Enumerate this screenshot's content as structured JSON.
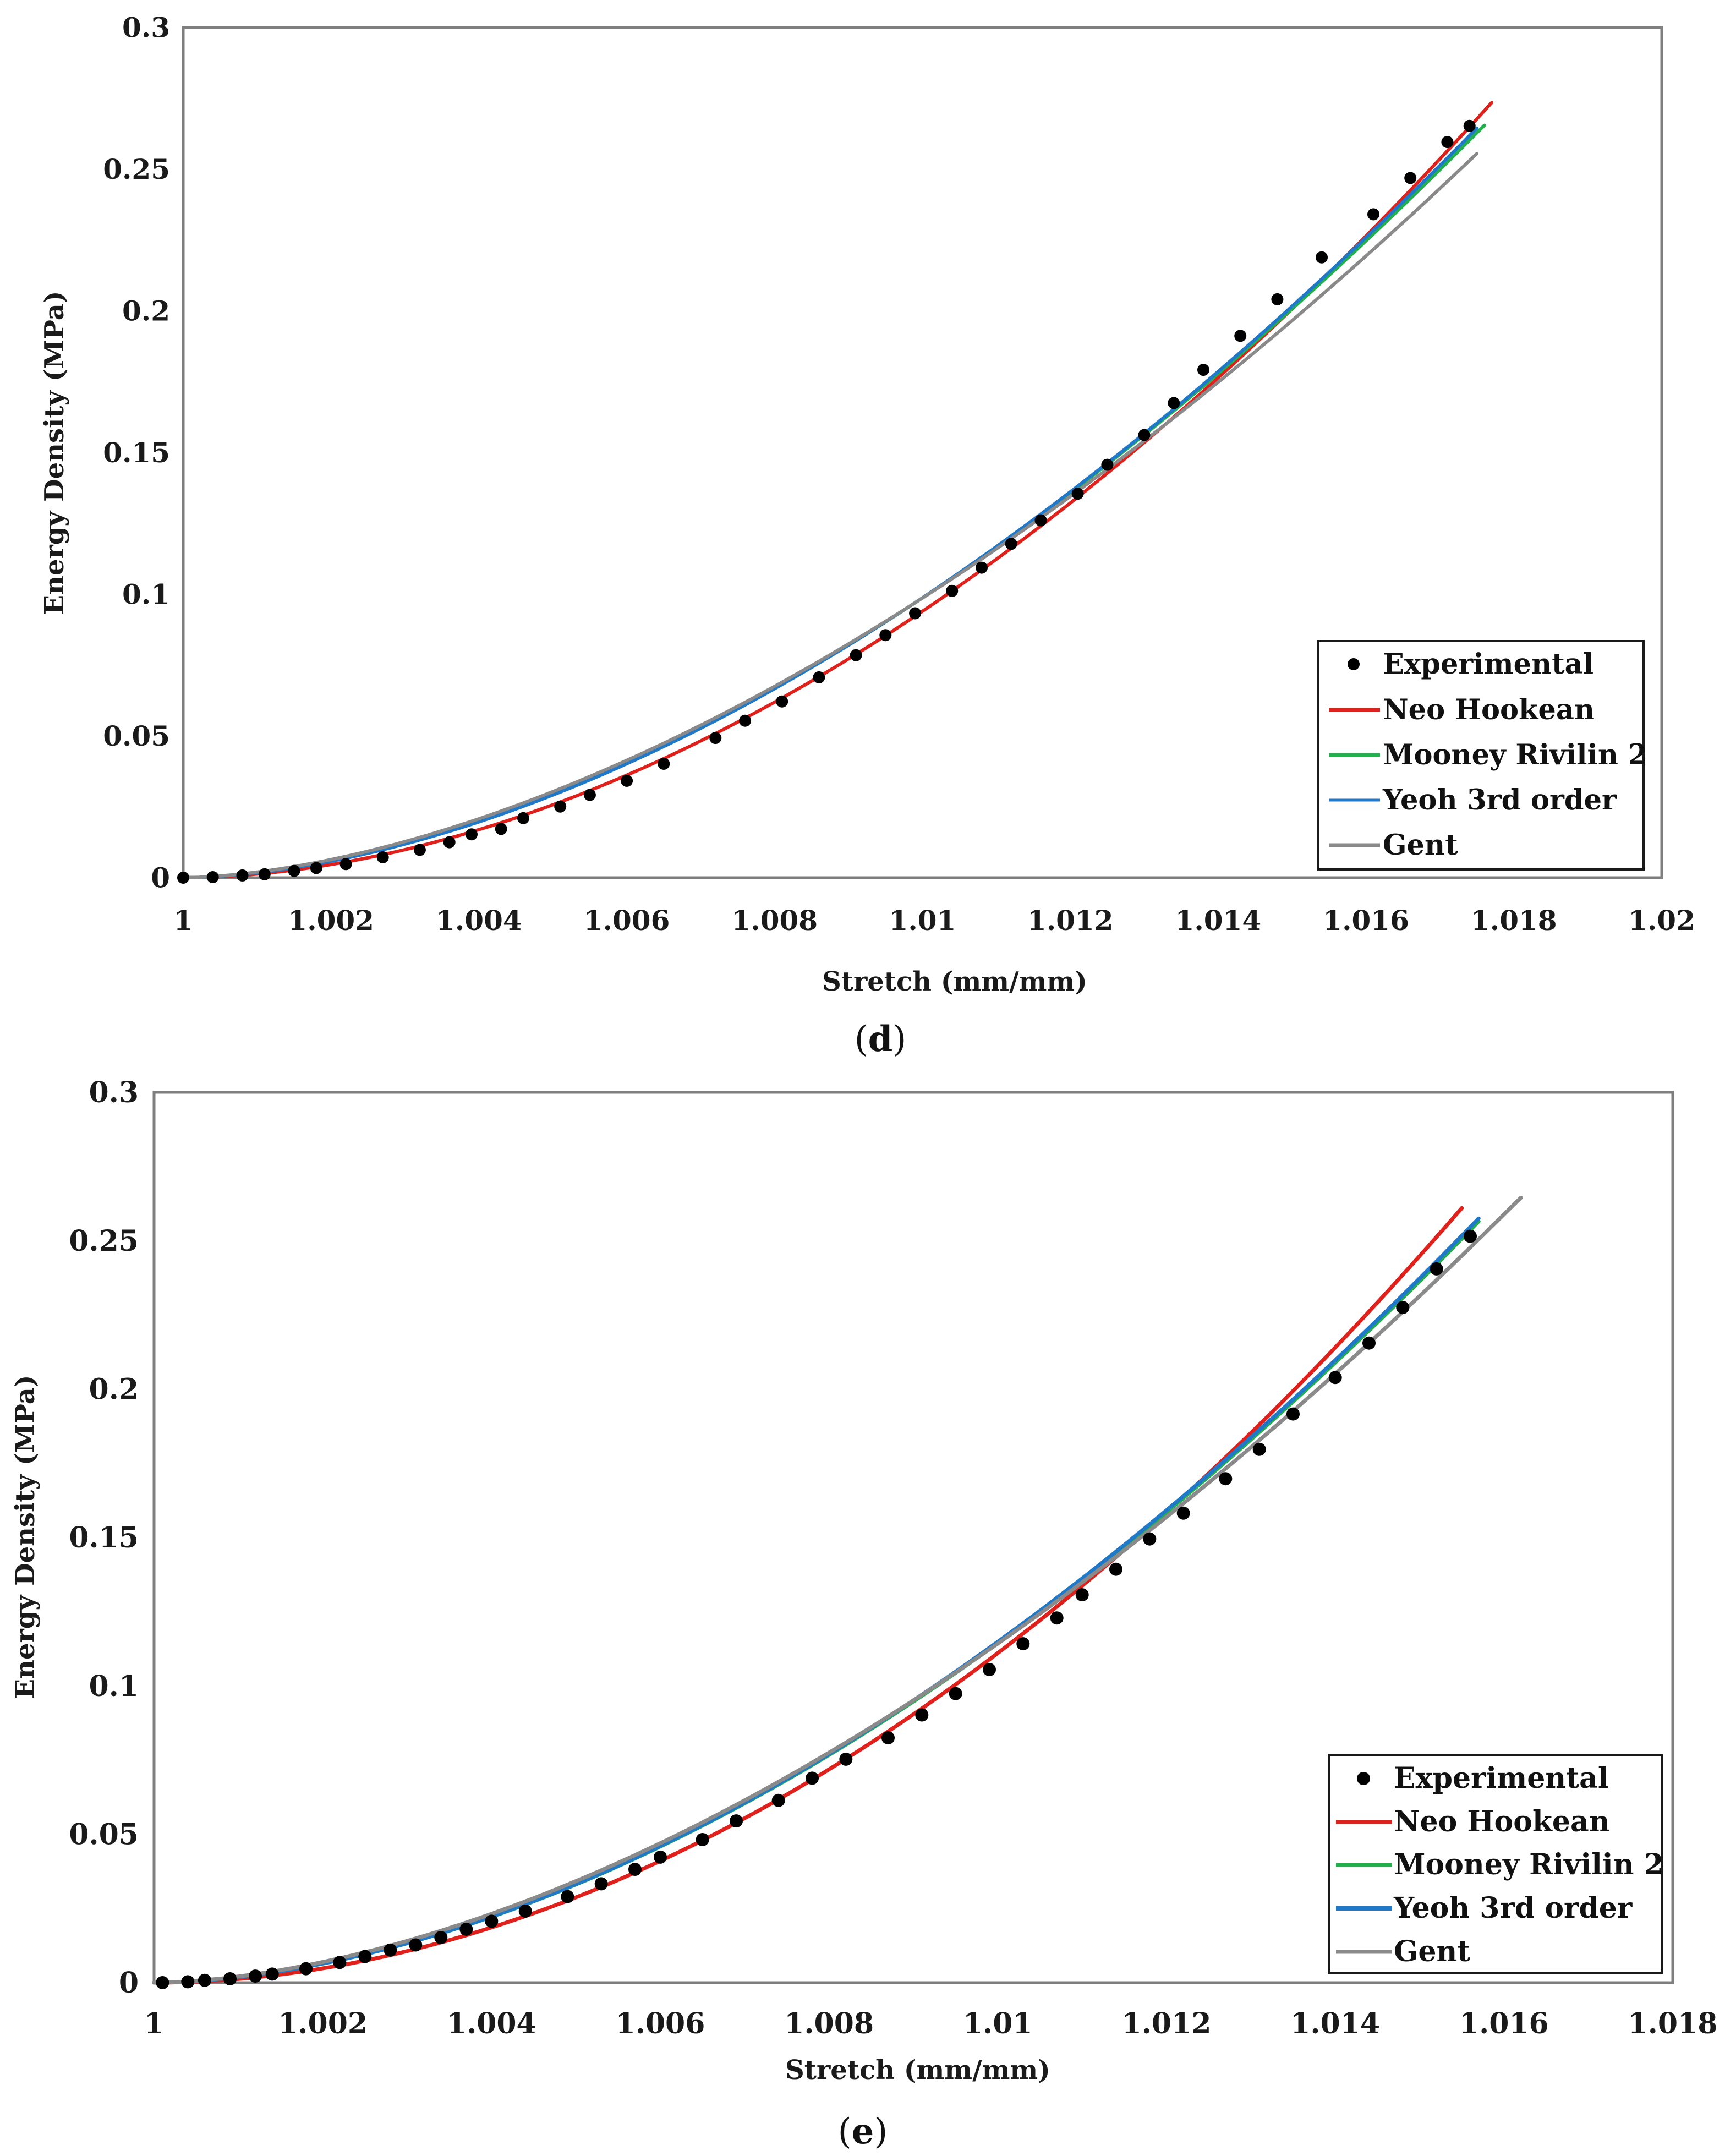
{
  "panels": [
    {
      "caption_open": "(",
      "caption_letter": "d",
      "caption_close": ")",
      "chart_data": {
        "type": "scatter+line",
        "title": "",
        "xlabel": "Stretch (mm/mm)",
        "ylabel": "Energy Density (MPa)",
        "xlim": [
          1,
          1.02
        ],
        "ylim": [
          0,
          0.3
        ],
        "xticks": [
          1,
          1.002,
          1.004,
          1.006,
          1.008,
          1.01,
          1.012,
          1.014,
          1.016,
          1.018,
          1.02
        ],
        "xtick_labels": [
          "1",
          "1.002",
          "1.004",
          "1.006",
          "1.008",
          "1.01",
          "1.012",
          "1.014",
          "1.016",
          "1.018",
          "1.02"
        ],
        "yticks": [
          0,
          0.05,
          0.1,
          0.15,
          0.2,
          0.25,
          0.3
        ],
        "ytick_labels": [
          "0",
          "0.05",
          "0.1",
          "0.15",
          "0.2",
          "0.25",
          "0.3"
        ],
        "grid": false,
        "legend_position": "bottom-right",
        "experimental": {
          "name": "Experimental",
          "x": [
            1.0,
            1.0004,
            1.0008,
            1.0011,
            1.0015,
            1.0018,
            1.0022,
            1.0027,
            1.0032,
            1.0036,
            1.0039,
            1.0043,
            1.0046,
            1.0051,
            1.0055,
            1.006,
            1.0065,
            1.0072,
            1.0076,
            1.0081,
            1.0086,
            1.0091,
            1.0095,
            1.0099,
            1.0104,
            1.0108,
            1.0112,
            1.0116,
            1.0121,
            1.0125,
            1.013,
            1.0134,
            1.0138,
            1.0143,
            1.0148,
            1.0154,
            1.0161,
            1.0166,
            1.0171,
            1.0174
          ],
          "y": [
            0.0,
            0.0002,
            0.0008,
            0.0012,
            0.0024,
            0.0034,
            0.0048,
            0.0072,
            0.0098,
            0.0125,
            0.0153,
            0.0172,
            0.021,
            0.0251,
            0.0292,
            0.0342,
            0.0402,
            0.0493,
            0.0554,
            0.0622,
            0.0707,
            0.0785,
            0.0856,
            0.0933,
            0.1012,
            0.1094,
            0.1178,
            0.1261,
            0.1355,
            0.1457,
            0.1562,
            0.1675,
            0.1792,
            0.1912,
            0.2041,
            0.2189,
            0.2341,
            0.2469,
            0.2596,
            0.2653
          ]
        },
        "series": [
          {
            "name": "Neo Hookean",
            "color": "#e0201b",
            "x_start": 1.0,
            "x_end": 1.0177,
            "y_end": 0.2735,
            "exp": 1.87
          },
          {
            "name": "Mooney Rivilin 2",
            "color": "#21b04b",
            "x_start": 1.0,
            "x_end": 1.0176,
            "y_end": 0.2655,
            "exp": 1.75
          },
          {
            "name": "Yeoh 3rd order",
            "color": "#1f78c8",
            "x_start": 1.0,
            "x_end": 1.0175,
            "y_end": 0.2645,
            "exp": 1.76
          },
          {
            "name": "Gent",
            "color": "#8a8a8a",
            "x_start": 1.0,
            "x_end": 1.0175,
            "y_end": 0.2555,
            "exp": 1.7
          }
        ]
      }
    },
    {
      "caption_open": "(",
      "caption_letter": "e",
      "caption_close": ")",
      "chart_data": {
        "type": "scatter+line",
        "title": "",
        "xlabel": "Stretch (mm/mm)",
        "ylabel": "Energy Density (MPa)",
        "xlim": [
          1,
          1.018
        ],
        "ylim": [
          0,
          0.3
        ],
        "xticks": [
          1,
          1.002,
          1.004,
          1.006,
          1.008,
          1.01,
          1.012,
          1.014,
          1.016,
          1.018
        ],
        "xtick_labels": [
          "1",
          "1.002",
          "1.004",
          "1.006",
          "1.008",
          "1.01",
          "1.012",
          "1.014",
          "1.016",
          "1.018"
        ],
        "yticks": [
          0,
          0.05,
          0.1,
          0.15,
          0.2,
          0.25,
          0.3
        ],
        "ytick_labels": [
          "0",
          "0.05",
          "0.1",
          "0.15",
          "0.2",
          "0.25",
          "0.3"
        ],
        "grid": false,
        "legend_position": "bottom-right",
        "experimental": {
          "name": "Experimental",
          "x": [
            1.0001,
            1.0004,
            1.0006,
            1.0009,
            1.0012,
            1.0014,
            1.0018,
            1.0022,
            1.0025,
            1.0028,
            1.0031,
            1.0034,
            1.0037,
            1.004,
            1.0044,
            1.0049,
            1.0053,
            1.0057,
            1.006,
            1.0065,
            1.0069,
            1.0074,
            1.0078,
            1.0082,
            1.0087,
            1.0091,
            1.0095,
            1.0099,
            1.0103,
            1.0107,
            1.011,
            1.0114,
            1.0118,
            1.0122,
            1.0127,
            1.0131,
            1.0135,
            1.014,
            1.0144,
            1.0148,
            1.0152,
            1.0156
          ],
          "y": [
            0.0,
            0.0003,
            0.0008,
            0.0013,
            0.0022,
            0.0029,
            0.0047,
            0.0068,
            0.0088,
            0.011,
            0.0127,
            0.0152,
            0.018,
            0.0207,
            0.0241,
            0.029,
            0.0333,
            0.0382,
            0.0423,
            0.0482,
            0.0545,
            0.0614,
            0.0689,
            0.0753,
            0.0825,
            0.0902,
            0.0974,
            0.1055,
            0.1142,
            0.1229,
            0.1307,
            0.1393,
            0.1495,
            0.1582,
            0.1698,
            0.1797,
            0.1916,
            0.2039,
            0.2155,
            0.2275,
            0.2405,
            0.2515
          ]
        },
        "series": [
          {
            "name": "Neo Hookean",
            "color": "#e0201b",
            "x_start": 1.0,
            "x_end": 1.0155,
            "y_end": 0.261,
            "exp": 1.95
          },
          {
            "name": "Mooney Rivilin 2",
            "color": "#21b04b",
            "x_start": 1.0,
            "x_end": 1.0157,
            "y_end": 0.2565,
            "exp": 1.79
          },
          {
            "name": "Yeoh 3rd order",
            "color": "#1f78c8",
            "x_start": 1.0,
            "x_end": 1.0157,
            "y_end": 0.2575,
            "exp": 1.79
          },
          {
            "name": "Gent",
            "color": "#8a8a8a",
            "x_start": 1.0,
            "x_end": 1.0162,
            "y_end": 0.2645,
            "exp": 1.74
          }
        ]
      }
    }
  ]
}
